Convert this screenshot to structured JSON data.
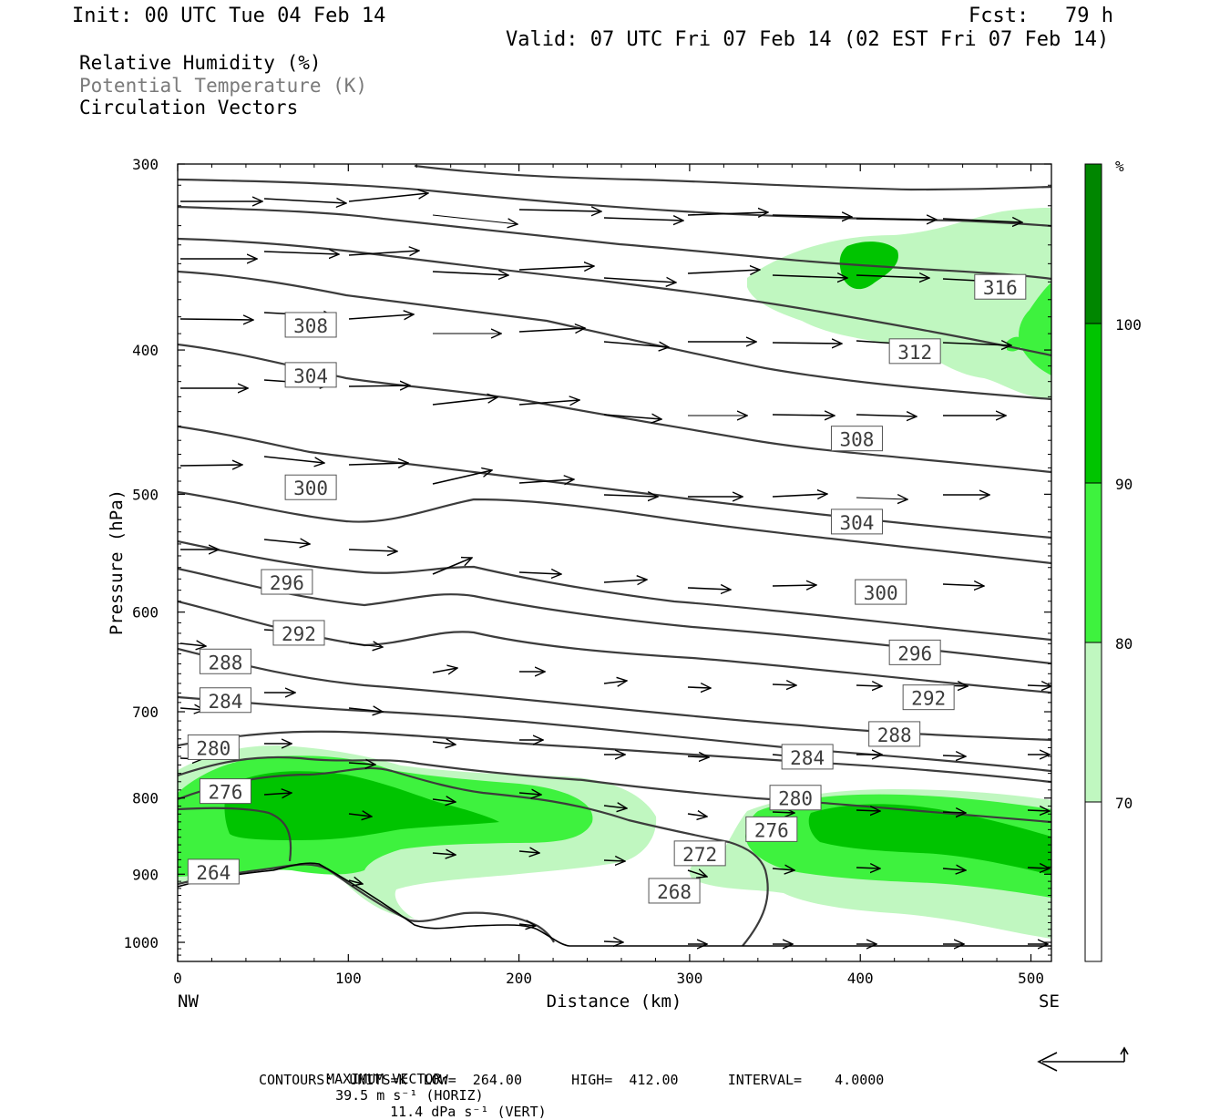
{
  "header": {
    "init": "Init: 00 UTC Tue 04 Feb 14",
    "fcst": "Fcst:   79 h",
    "valid": "Valid: 07 UTC Fri 07 Feb 14 (02 EST Fri 07 Feb 14)"
  },
  "legend": {
    "rh": "Relative Humidity (%)",
    "theta": "Potential Temperature (K)",
    "vectors": "Circulation Vectors"
  },
  "footer": {
    "max_vector_label": "MAXIMUM VECTOR:",
    "max_horiz": "39.5 m s⁻¹ (HORIZ)",
    "max_vert": "11.4 dPa s⁻¹ (VERT)",
    "contours": "CONTOURS:  UNITS=K  LOW=  264.00      HIGH=  412.00      INTERVAL=    4.0000"
  },
  "colors": {
    "rh70": "#c0f7c0",
    "rh80": "#3ef23e",
    "rh90": "#00c400",
    "rh100": "#008600",
    "contour": "#3c3c3c",
    "vector": "#000000"
  },
  "colorbar": {
    "unit": "%",
    "levels": [
      "70",
      "80",
      "90",
      "100"
    ]
  },
  "chart_data": {
    "type": "cross-section",
    "xlabel": "Distance (km)",
    "ylabel": "Pressure (hPa)",
    "xlim": [
      0,
      512
    ],
    "ylim": [
      300,
      1030
    ],
    "y_scale": "log-pressure",
    "x_ticks": [
      "0",
      "100",
      "200",
      "300",
      "400",
      "500"
    ],
    "y_ticks": [
      "300",
      "400",
      "500",
      "600",
      "700",
      "800",
      "900",
      "1000"
    ],
    "x_end_labels": {
      "left": "NW",
      "right": "SE"
    },
    "contour_labels": [
      {
        "v": "316",
        "x": 482,
        "p": 363
      },
      {
        "v": "312",
        "x": 432,
        "p": 401
      },
      {
        "v": "308",
        "x": 78,
        "p": 385
      },
      {
        "v": "308",
        "x": 398,
        "p": 459
      },
      {
        "v": "304",
        "x": 78,
        "p": 416
      },
      {
        "v": "304",
        "x": 398,
        "p": 522
      },
      {
        "v": "300",
        "x": 78,
        "p": 495
      },
      {
        "v": "300",
        "x": 412,
        "p": 582
      },
      {
        "v": "296",
        "x": 64,
        "p": 573
      },
      {
        "v": "296",
        "x": 432,
        "p": 639
      },
      {
        "v": "292",
        "x": 71,
        "p": 620
      },
      {
        "v": "292",
        "x": 440,
        "p": 685
      },
      {
        "v": "288",
        "x": 28,
        "p": 648
      },
      {
        "v": "288",
        "x": 420,
        "p": 725
      },
      {
        "v": "284",
        "x": 28,
        "p": 688
      },
      {
        "v": "284",
        "x": 369,
        "p": 751
      },
      {
        "v": "280",
        "x": 21,
        "p": 740
      },
      {
        "v": "280",
        "x": 362,
        "p": 800
      },
      {
        "v": "276",
        "x": 28,
        "p": 792
      },
      {
        "v": "276",
        "x": 348,
        "p": 840
      },
      {
        "v": "272",
        "x": 306,
        "p": 872
      },
      {
        "v": "268",
        "x": 291,
        "p": 924
      },
      {
        "v": "264",
        "x": 21,
        "p": 897
      }
    ]
  }
}
